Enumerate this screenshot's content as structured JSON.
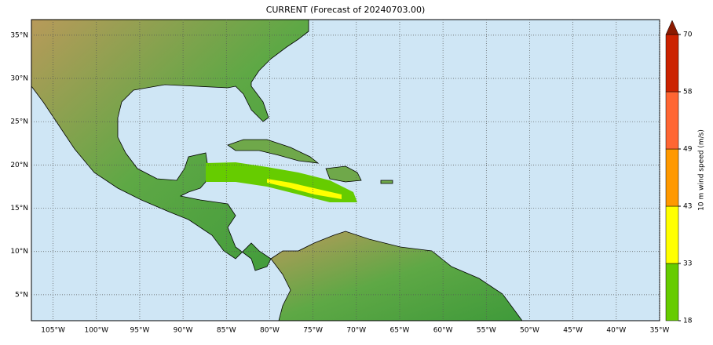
{
  "title": "CURRENT (Forecast of 20240703.00)",
  "map": {
    "xlim": [
      -107.5,
      -35
    ],
    "ylim": [
      2,
      36.8
    ],
    "xticks": [
      {
        "value": -105,
        "label": "105°W"
      },
      {
        "value": -100,
        "label": "100°W"
      },
      {
        "value": -95,
        "label": "95°W"
      },
      {
        "value": -90,
        "label": "90°W"
      },
      {
        "value": -85,
        "label": "85°W"
      },
      {
        "value": -80,
        "label": "80°W"
      },
      {
        "value": -75,
        "label": "75°W"
      },
      {
        "value": -70,
        "label": "70°W"
      },
      {
        "value": -65,
        "label": "65°W"
      },
      {
        "value": -60,
        "label": "60°W"
      },
      {
        "value": -55,
        "label": "55°W"
      },
      {
        "value": -50,
        "label": "50°W"
      },
      {
        "value": -45,
        "label": "45°W"
      },
      {
        "value": -40,
        "label": "40°W"
      },
      {
        "value": -35,
        "label": "35°W"
      }
    ],
    "yticks": [
      {
        "value": 5,
        "label": "5°N"
      },
      {
        "value": 10,
        "label": "10°N"
      },
      {
        "value": 15,
        "label": "15°N"
      },
      {
        "value": 20,
        "label": "20°N"
      },
      {
        "value": 25,
        "label": "25°N"
      },
      {
        "value": 30,
        "label": "30°N"
      },
      {
        "value": 35,
        "label": "35°N"
      }
    ]
  },
  "colorbar": {
    "label": "10 m wind speed (m/s)",
    "ticks": [
      18,
      33,
      43,
      49,
      58,
      70
    ],
    "colors": [
      "#66cc00",
      "#ffff00",
      "#ff9900",
      "#ff6633",
      "#cc2200"
    ],
    "extend_color": "#8b1a00"
  }
}
